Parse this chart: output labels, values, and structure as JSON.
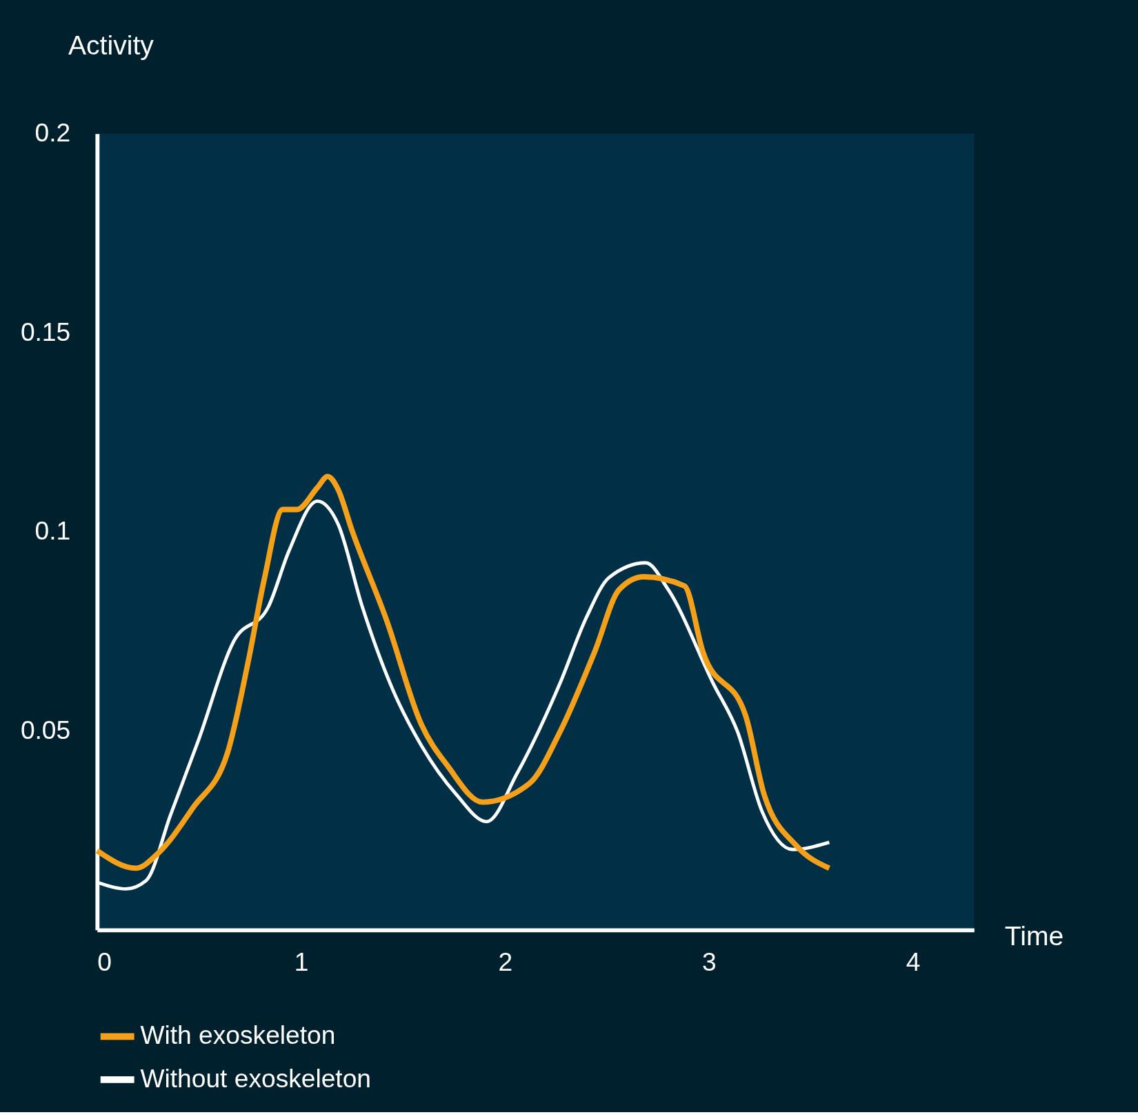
{
  "chart_data": {
    "type": "line",
    "xlabel": "Time",
    "ylabel": "Activity",
    "xlim": [
      0,
      4.3
    ],
    "ylim": [
      0,
      0.2
    ],
    "xticks": [
      0,
      1,
      2,
      3,
      4
    ],
    "yticks": [
      0.05,
      0.1,
      0.15,
      0.2
    ],
    "legend": "bottom",
    "series": [
      {
        "name": "With exoskeleton",
        "color": "#f5a01a",
        "x": [
          0,
          0.19,
          0.3,
          0.47,
          0.64,
          0.74,
          0.82,
          0.91,
          0.98,
          1.08,
          1.13,
          1.18,
          1.25,
          1.42,
          1.59,
          1.72,
          1.89,
          2.12,
          2.27,
          2.44,
          2.56,
          2.68,
          2.88,
          2.97,
          3.18,
          3.27,
          3.43,
          3.59
        ],
        "values": [
          0.0199,
          0.0155,
          0.0193,
          0.0307,
          0.0446,
          0.0672,
          0.0882,
          0.1056,
          0.1056,
          0.1111,
          0.1139,
          0.1108,
          0.1003,
          0.0777,
          0.0516,
          0.0411,
          0.0321,
          0.0368,
          0.0498,
          0.0699,
          0.0855,
          0.0887,
          0.0864,
          0.0699,
          0.0538,
          0.0341,
          0.0211,
          0.0155
        ]
      },
      {
        "name": "Without exoskeleton",
        "color": "#ffffff",
        "x": [
          0.01,
          0.14,
          0.24,
          0.36,
          0.5,
          0.67,
          0.84,
          0.94,
          1.08,
          1.18,
          1.3,
          1.45,
          1.59,
          1.76,
          1.91,
          2.06,
          2.27,
          2.4,
          2.51,
          2.69,
          2.8,
          3.02,
          3.14,
          3.26,
          3.41,
          3.59
        ],
        "values": [
          0.0118,
          0.0103,
          0.0124,
          0.0289,
          0.0481,
          0.0725,
          0.0812,
          0.0951,
          0.1077,
          0.1021,
          0.0812,
          0.0603,
          0.0463,
          0.0341,
          0.0272,
          0.0394,
          0.062,
          0.0786,
          0.0885,
          0.0922,
          0.0855,
          0.062,
          0.0498,
          0.0298,
          0.0202,
          0.022
        ]
      }
    ]
  }
}
